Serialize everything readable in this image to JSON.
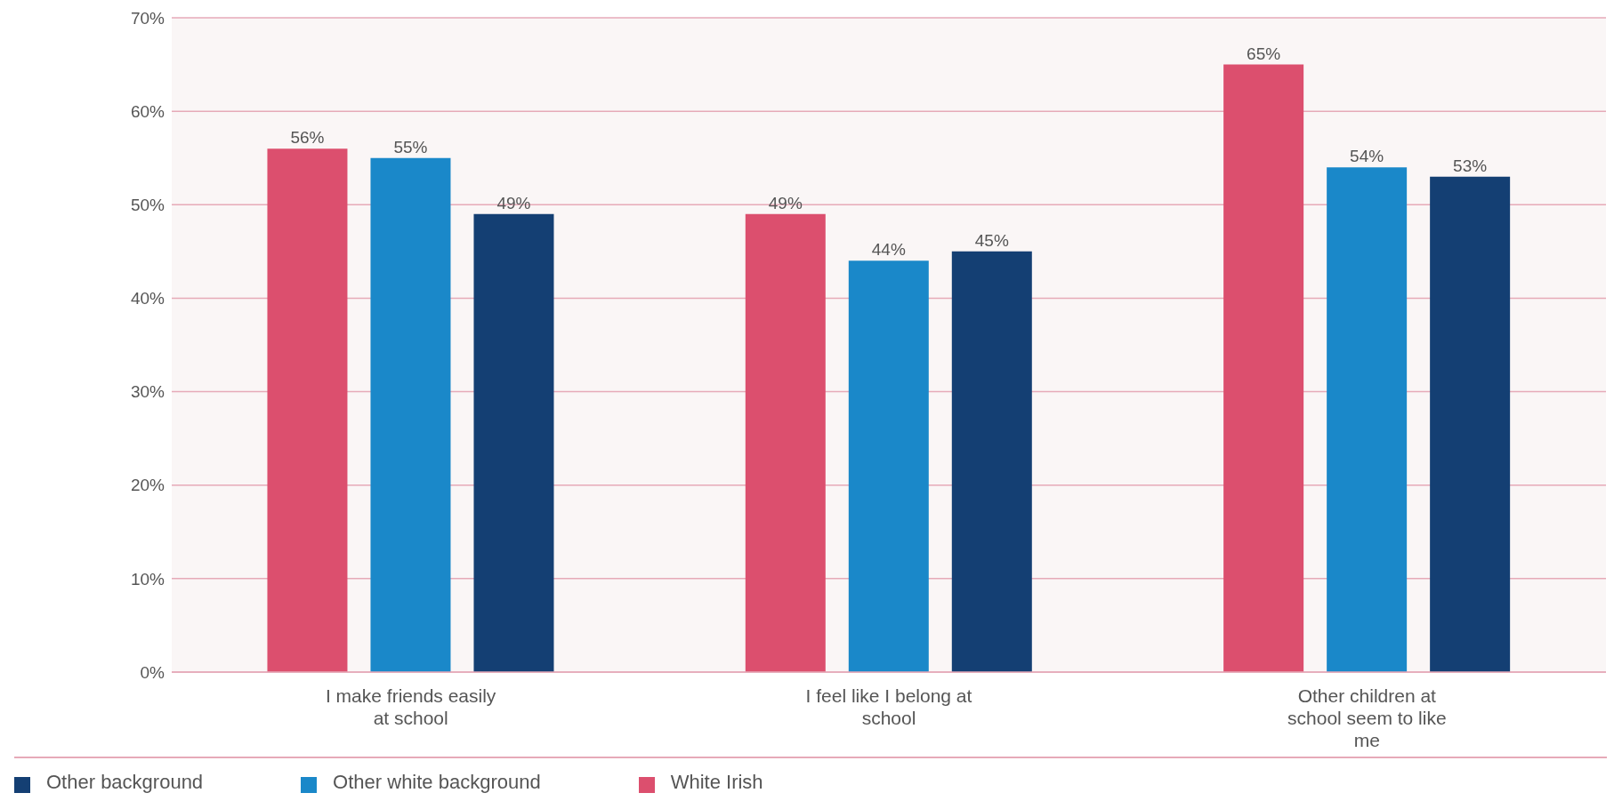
{
  "chart_data": {
    "type": "bar",
    "categories": [
      "I make friends easily at school",
      "I feel like I belong at school",
      "Other children at school seem to like me"
    ],
    "series": [
      {
        "name": "White Irish",
        "color": "#dc4f6e",
        "values": [
          56,
          49,
          65
        ],
        "value_labels": [
          "56%",
          "49%",
          "65%"
        ]
      },
      {
        "name": "Other white background",
        "color": "#1a88c9",
        "values": [
          55,
          44,
          54
        ],
        "value_labels": [
          "55%",
          "44%",
          "54%"
        ]
      },
      {
        "name": "Other background",
        "color": "#143f73",
        "values": [
          49,
          45,
          53
        ],
        "value_labels": [
          "49%",
          "45%",
          "53%"
        ]
      }
    ],
    "ylim": [
      0,
      70
    ],
    "yticks": [
      {
        "value": 0,
        "label": "0%"
      },
      {
        "value": 10,
        "label": "10%"
      },
      {
        "value": 20,
        "label": "20%"
      },
      {
        "value": 30,
        "label": "30%"
      },
      {
        "value": 40,
        "label": "40%"
      },
      {
        "value": 50,
        "label": "50%"
      },
      {
        "value": 60,
        "label": "60%"
      },
      {
        "value": 70,
        "label": "70%"
      }
    ],
    "grid": "y",
    "legend": "bottom"
  }
}
